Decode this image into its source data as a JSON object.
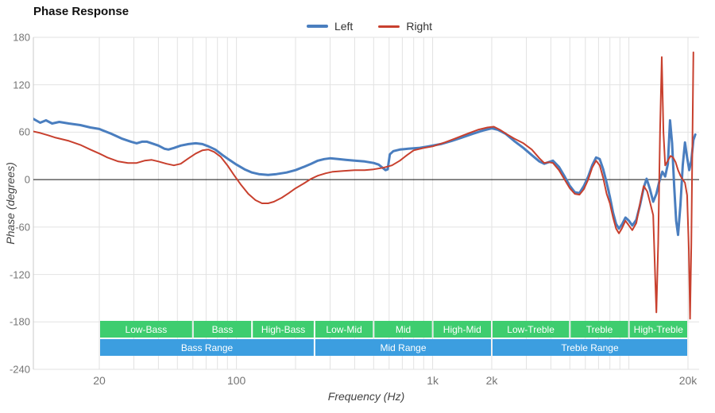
{
  "chart": {
    "title": "Phase Response",
    "xlabel": "Frequency (Hz)",
    "ylabel": "Phase (degrees)"
  },
  "chart_data": {
    "type": "line",
    "title": "Phase Response",
    "xlabel": "Frequency (Hz)",
    "ylabel": "Phase (degrees)",
    "x_scale": "log",
    "x_range": [
      9.2,
      22800
    ],
    "y_range": [
      -240,
      180
    ],
    "grid": true,
    "legend_position": "top-center",
    "y_ticks": [
      180,
      120,
      60,
      0,
      -60,
      -120,
      -180,
      -240
    ],
    "x_ticks": [
      {
        "f": 20,
        "label": "20"
      },
      {
        "f": 100,
        "label": "100"
      },
      {
        "f": 1000,
        "label": "1k"
      },
      {
        "f": 2000,
        "label": "2k"
      },
      {
        "f": 20000,
        "label": "20k"
      }
    ],
    "x_gridlines": [
      20,
      30,
      40,
      50,
      60,
      70,
      80,
      90,
      100,
      200,
      300,
      400,
      500,
      600,
      700,
      800,
      900,
      1000,
      2000,
      3000,
      4000,
      5000,
      6000,
      7000,
      8000,
      9000,
      10000,
      20000
    ],
    "zero_line": 0,
    "colors": {
      "grid": "#e2e2e2",
      "axis": "#c9c9c9",
      "zero_line": "#111111",
      "band_sub": "#3ecd6f",
      "band_range": "#3c9ee0"
    },
    "series": [
      {
        "name": "Left",
        "color": "#4a7ebf",
        "stroke_width": 3,
        "points": [
          [
            9.2,
            77
          ],
          [
            10,
            72
          ],
          [
            10.7,
            75
          ],
          [
            11.5,
            71
          ],
          [
            12.5,
            73
          ],
          [
            14,
            71
          ],
          [
            16,
            69
          ],
          [
            18,
            66
          ],
          [
            20,
            64
          ],
          [
            23,
            58
          ],
          [
            26,
            52
          ],
          [
            29,
            48
          ],
          [
            31,
            46
          ],
          [
            33,
            48
          ],
          [
            35,
            48
          ],
          [
            37,
            46
          ],
          [
            40,
            43
          ],
          [
            43,
            39
          ],
          [
            45,
            38
          ],
          [
            48,
            40
          ],
          [
            52,
            43
          ],
          [
            57,
            45
          ],
          [
            62,
            46
          ],
          [
            67,
            45
          ],
          [
            72,
            42
          ],
          [
            78,
            38
          ],
          [
            85,
            31
          ],
          [
            92,
            25
          ],
          [
            100,
            19
          ],
          [
            110,
            13
          ],
          [
            120,
            9
          ],
          [
            130,
            7
          ],
          [
            145,
            6
          ],
          [
            160,
            7
          ],
          [
            180,
            9
          ],
          [
            200,
            12
          ],
          [
            220,
            16
          ],
          [
            240,
            20
          ],
          [
            260,
            24
          ],
          [
            280,
            26
          ],
          [
            300,
            27
          ],
          [
            330,
            26
          ],
          [
            360,
            25
          ],
          [
            400,
            24
          ],
          [
            450,
            23
          ],
          [
            500,
            21
          ],
          [
            530,
            19
          ],
          [
            555,
            15
          ],
          [
            575,
            12
          ],
          [
            590,
            13
          ],
          [
            605,
            32
          ],
          [
            630,
            36
          ],
          [
            680,
            38
          ],
          [
            750,
            39
          ],
          [
            850,
            40
          ],
          [
            950,
            42
          ],
          [
            1100,
            45
          ],
          [
            1250,
            49
          ],
          [
            1400,
            53
          ],
          [
            1600,
            58
          ],
          [
            1800,
            62
          ],
          [
            2000,
            65
          ],
          [
            2150,
            63
          ],
          [
            2350,
            58
          ],
          [
            2600,
            49
          ],
          [
            2900,
            40
          ],
          [
            3200,
            31
          ],
          [
            3500,
            23
          ],
          [
            3700,
            20
          ],
          [
            3900,
            22
          ],
          [
            4100,
            24
          ],
          [
            4400,
            16
          ],
          [
            4700,
            4
          ],
          [
            5000,
            -8
          ],
          [
            5300,
            -16
          ],
          [
            5600,
            -17
          ],
          [
            5900,
            -8
          ],
          [
            6200,
            4
          ],
          [
            6500,
            18
          ],
          [
            6800,
            28
          ],
          [
            7100,
            26
          ],
          [
            7400,
            13
          ],
          [
            7700,
            -4
          ],
          [
            8000,
            -22
          ],
          [
            8300,
            -42
          ],
          [
            8600,
            -56
          ],
          [
            8900,
            -62
          ],
          [
            9200,
            -57
          ],
          [
            9600,
            -48
          ],
          [
            10000,
            -52
          ],
          [
            10400,
            -58
          ],
          [
            10900,
            -51
          ],
          [
            11400,
            -32
          ],
          [
            11900,
            -10
          ],
          [
            12300,
            1
          ],
          [
            12800,
            -12
          ],
          [
            13300,
            -28
          ],
          [
            13800,
            -18
          ],
          [
            14300,
            -2
          ],
          [
            14800,
            10
          ],
          [
            15300,
            4
          ],
          [
            15800,
            20
          ],
          [
            16200,
            75
          ],
          [
            16600,
            46
          ],
          [
            17000,
            -8
          ],
          [
            17400,
            -52
          ],
          [
            17800,
            -70
          ],
          [
            18300,
            -32
          ],
          [
            18800,
            18
          ],
          [
            19300,
            47
          ],
          [
            19800,
            28
          ],
          [
            20300,
            12
          ],
          [
            20800,
            24
          ],
          [
            21300,
            50
          ],
          [
            21800,
            57
          ]
        ]
      },
      {
        "name": "Right",
        "color": "#c8402e",
        "stroke_width": 2,
        "points": [
          [
            9.2,
            61
          ],
          [
            10,
            59
          ],
          [
            11,
            56
          ],
          [
            12,
            53
          ],
          [
            14,
            49
          ],
          [
            16,
            44
          ],
          [
            18,
            38
          ],
          [
            20,
            33
          ],
          [
            22,
            28
          ],
          [
            25,
            23
          ],
          [
            28,
            21
          ],
          [
            31,
            21
          ],
          [
            34,
            24
          ],
          [
            37,
            25
          ],
          [
            40,
            23
          ],
          [
            44,
            20
          ],
          [
            48,
            18
          ],
          [
            52,
            20
          ],
          [
            57,
            27
          ],
          [
            62,
            33
          ],
          [
            67,
            37
          ],
          [
            72,
            38
          ],
          [
            77,
            35
          ],
          [
            83,
            29
          ],
          [
            90,
            18
          ],
          [
            97,
            6
          ],
          [
            105,
            -6
          ],
          [
            115,
            -18
          ],
          [
            125,
            -26
          ],
          [
            135,
            -30
          ],
          [
            145,
            -30
          ],
          [
            155,
            -28
          ],
          [
            170,
            -23
          ],
          [
            185,
            -17
          ],
          [
            200,
            -11
          ],
          [
            220,
            -5
          ],
          [
            240,
            1
          ],
          [
            260,
            5
          ],
          [
            285,
            8
          ],
          [
            310,
            10
          ],
          [
            350,
            11
          ],
          [
            400,
            12
          ],
          [
            450,
            12
          ],
          [
            500,
            13
          ],
          [
            560,
            15
          ],
          [
            620,
            18
          ],
          [
            680,
            24
          ],
          [
            740,
            31
          ],
          [
            800,
            37
          ],
          [
            900,
            40
          ],
          [
            1000,
            42
          ],
          [
            1150,
            47
          ],
          [
            1300,
            52
          ],
          [
            1500,
            58
          ],
          [
            1700,
            63
          ],
          [
            1900,
            66
          ],
          [
            2050,
            67
          ],
          [
            2200,
            63
          ],
          [
            2400,
            57
          ],
          [
            2600,
            52
          ],
          [
            2900,
            46
          ],
          [
            3200,
            38
          ],
          [
            3500,
            27
          ],
          [
            3700,
            21
          ],
          [
            3900,
            22
          ],
          [
            4100,
            21
          ],
          [
            4400,
            12
          ],
          [
            4700,
            0
          ],
          [
            5000,
            -11
          ],
          [
            5300,
            -18
          ],
          [
            5600,
            -19
          ],
          [
            5900,
            -12
          ],
          [
            6200,
            0
          ],
          [
            6500,
            15
          ],
          [
            6800,
            24
          ],
          [
            7100,
            18
          ],
          [
            7400,
            2
          ],
          [
            7700,
            -18
          ],
          [
            8000,
            -30
          ],
          [
            8300,
            -48
          ],
          [
            8600,
            -62
          ],
          [
            8900,
            -68
          ],
          [
            9200,
            -62
          ],
          [
            9600,
            -52
          ],
          [
            10000,
            -58
          ],
          [
            10400,
            -64
          ],
          [
            10900,
            -55
          ],
          [
            11400,
            -30
          ],
          [
            11900,
            -8
          ],
          [
            12400,
            -15
          ],
          [
            12900,
            -32
          ],
          [
            13300,
            -45
          ],
          [
            13600,
            -120
          ],
          [
            13800,
            -168
          ],
          [
            14100,
            -80
          ],
          [
            14400,
            60
          ],
          [
            14700,
            155
          ],
          [
            15000,
            60
          ],
          [
            15300,
            18
          ],
          [
            15800,
            24
          ],
          [
            16300,
            30
          ],
          [
            16800,
            28
          ],
          [
            17300,
            22
          ],
          [
            17800,
            12
          ],
          [
            18300,
            5
          ],
          [
            18800,
            0
          ],
          [
            19300,
            -4
          ],
          [
            19800,
            -20
          ],
          [
            20200,
            -90
          ],
          [
            20500,
            -176
          ],
          [
            20800,
            -80
          ],
          [
            21100,
            60
          ],
          [
            21300,
            161
          ]
        ]
      }
    ],
    "bands": {
      "sub": {
        "color": "#3ecd6f",
        "items": [
          {
            "label": "Low-Bass",
            "f1": 20,
            "f2": 60
          },
          {
            "label": "Bass",
            "f1": 60,
            "f2": 120
          },
          {
            "label": "High-Bass",
            "f1": 120,
            "f2": 250
          },
          {
            "label": "Low-Mid",
            "f1": 250,
            "f2": 500
          },
          {
            "label": "Mid",
            "f1": 500,
            "f2": 1000
          },
          {
            "label": "High-Mid",
            "f1": 1000,
            "f2": 2000
          },
          {
            "label": "Low-Treble",
            "f1": 2000,
            "f2": 5000
          },
          {
            "label": "Treble",
            "f1": 5000,
            "f2": 10000
          },
          {
            "label": "High-Treble",
            "f1": 10000,
            "f2": 20000
          }
        ]
      },
      "ranges": {
        "color": "#3c9ee0",
        "items": [
          {
            "label": "Bass Range",
            "f1": 20,
            "f2": 250
          },
          {
            "label": "Mid Range",
            "f1": 250,
            "f2": 2000
          },
          {
            "label": "Treble Range",
            "f1": 2000,
            "f2": 20000
          }
        ]
      }
    }
  }
}
